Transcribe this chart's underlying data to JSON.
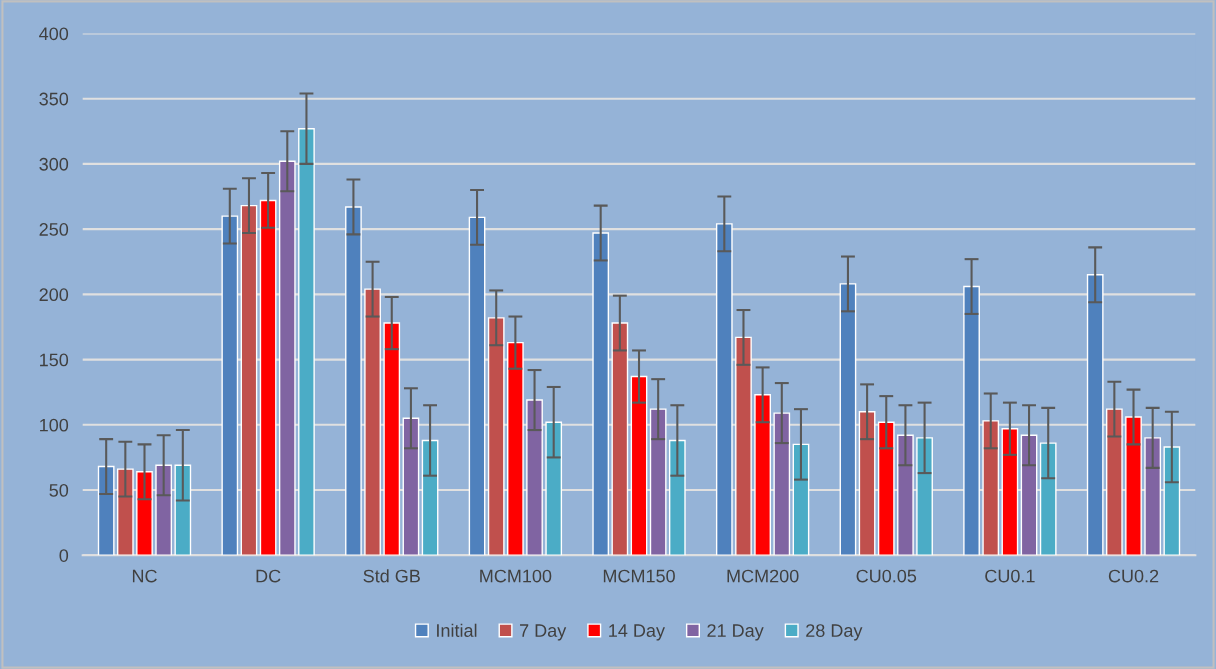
{
  "chart_data": {
    "type": "bar",
    "categories": [
      "NC",
      "DC",
      "Std GB",
      "MCM100",
      "MCM150",
      "MCM200",
      "CU0.05",
      "CU0.1",
      "CU0.2"
    ],
    "series": [
      {
        "name": "Initial",
        "color": "#4f81bd",
        "values": [
          68,
          260,
          267,
          259,
          247,
          254,
          208,
          206,
          215
        ],
        "errors": [
          21,
          21,
          21,
          21,
          21,
          21,
          21,
          21,
          21
        ]
      },
      {
        "name": "7 Day",
        "color": "#c0504d",
        "values": [
          66,
          268,
          204,
          182,
          178,
          167,
          110,
          103,
          112
        ],
        "errors": [
          21,
          21,
          21,
          21,
          21,
          21,
          21,
          21,
          21
        ]
      },
      {
        "name": "14 Day",
        "color": "#ff0000",
        "values": [
          64,
          272,
          178,
          163,
          137,
          123,
          102,
          97,
          106
        ],
        "errors": [
          21,
          21,
          20,
          20,
          20,
          21,
          20,
          20,
          21
        ]
      },
      {
        "name": "21 Day",
        "color": "#8064a2",
        "values": [
          69,
          302,
          105,
          119,
          112,
          109,
          92,
          92,
          90
        ],
        "errors": [
          23,
          23,
          23,
          23,
          23,
          23,
          23,
          23,
          23
        ]
      },
      {
        "name": "28 Day",
        "color": "#4bacc6",
        "values": [
          69,
          327,
          88,
          102,
          88,
          85,
          90,
          86,
          83
        ],
        "errors": [
          27,
          27,
          27,
          27,
          27,
          27,
          27,
          27,
          27
        ]
      }
    ],
    "ylim": [
      0,
      400
    ],
    "yticks": [
      0,
      50,
      100,
      150,
      200,
      250,
      300,
      350,
      400
    ],
    "grid": "y",
    "legend": "bottom"
  }
}
